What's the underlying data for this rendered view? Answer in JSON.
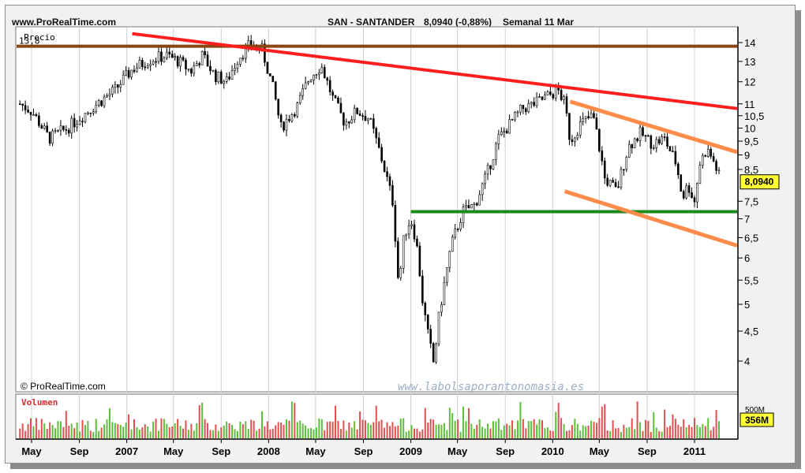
{
  "header": {
    "site": "www.ProRealTime.com",
    "instrument": "SAN - SANTANDER",
    "quote": "8,0940 (-0,88%)",
    "period": "Semanal  11 Mar"
  },
  "watermark": "www.labolsaporantonomasia.es",
  "copyright": "© ProRealTime.com",
  "chart_data": {
    "type": "candlestick",
    "price_panel": {
      "title": "Precio",
      "y_axis_ticks": [
        {
          "value": 14,
          "label": "14"
        },
        {
          "value": 13,
          "label": "13"
        },
        {
          "value": 12,
          "label": "12"
        },
        {
          "value": 11,
          "label": "11"
        },
        {
          "value": 10.5,
          "label": "10,5"
        },
        {
          "value": 10,
          "label": "10"
        },
        {
          "value": 9.5,
          "label": "9,5"
        },
        {
          "value": 9,
          "label": "9"
        },
        {
          "value": 8.5,
          "label": "8,5"
        },
        {
          "value": 7.5,
          "label": "7,5"
        },
        {
          "value": 7,
          "label": "7"
        },
        {
          "value": 6.5,
          "label": "6,5"
        },
        {
          "value": 6,
          "label": "6"
        },
        {
          "value": 5.5,
          "label": "5,5"
        },
        {
          "value": 5,
          "label": "5"
        },
        {
          "value": 4.5,
          "label": "4,5"
        },
        {
          "value": 4,
          "label": "4"
        }
      ],
      "last_price": {
        "value": 8.094,
        "label": "8,0940"
      },
      "resistance": {
        "value": 13.8,
        "label": "13,8",
        "color": "#8b4513"
      },
      "trendlines": [
        {
          "name": "down-trend",
          "color": "#ff1e1e",
          "from": {
            "date": "2007-01-15",
            "value": 14.5
          },
          "to": {
            "date": "2011-05-15",
            "value": 10.8
          }
        },
        {
          "name": "support",
          "color": "#1a8a1a",
          "from": {
            "date": "2009-01-01",
            "value": 7.2
          },
          "to": {
            "date": "2011-05-15",
            "value": 7.2
          }
        },
        {
          "name": "channel-top",
          "color": "#ff8c4a",
          "from": {
            "date": "2010-02-15",
            "value": 11.1
          },
          "to": {
            "date": "2011-05-15",
            "value": 9.1
          }
        },
        {
          "name": "channel-bottom",
          "color": "#ff8c4a",
          "from": {
            "date": "2010-02-01",
            "value": 7.8
          },
          "to": {
            "date": "2011-05-15",
            "value": 6.3
          }
        }
      ],
      "price_path": [
        [
          "2006-04-01",
          11.0
        ],
        [
          "2006-05-01",
          10.7
        ],
        [
          "2006-06-15",
          9.6
        ],
        [
          "2006-08-01",
          10.0
        ],
        [
          "2006-10-01",
          10.8
        ],
        [
          "2006-12-01",
          11.6
        ],
        [
          "2007-01-15",
          12.6
        ],
        [
          "2007-03-01",
          13.1
        ],
        [
          "2007-04-15",
          13.3
        ],
        [
          "2007-05-15",
          13.0
        ],
        [
          "2007-06-15",
          12.5
        ],
        [
          "2007-07-15",
          13.3
        ],
        [
          "2007-08-15",
          12.3
        ],
        [
          "2007-09-15",
          12.0
        ],
        [
          "2007-10-15",
          13.2
        ],
        [
          "2007-11-15",
          13.9
        ],
        [
          "2007-12-15",
          13.6
        ],
        [
          "2008-01-15",
          11.5
        ],
        [
          "2008-02-01",
          10.0
        ],
        [
          "2008-03-15",
          10.9
        ],
        [
          "2008-04-15",
          12.2
        ],
        [
          "2008-05-15",
          12.8
        ],
        [
          "2008-06-15",
          11.2
        ],
        [
          "2008-07-15",
          10.2
        ],
        [
          "2008-08-15",
          10.7
        ],
        [
          "2008-09-15",
          10.4
        ],
        [
          "2008-10-15",
          9.0
        ],
        [
          "2008-11-15",
          7.5
        ],
        [
          "2008-12-01",
          5.3
        ],
        [
          "2008-12-15",
          6.6
        ],
        [
          "2009-01-01",
          7.0
        ],
        [
          "2009-01-15",
          6.4
        ],
        [
          "2009-02-01",
          5.0
        ],
        [
          "2009-02-15",
          4.4
        ],
        [
          "2009-03-01",
          3.95
        ],
        [
          "2009-03-15",
          4.8
        ],
        [
          "2009-04-01",
          5.6
        ],
        [
          "2009-04-15",
          6.3
        ],
        [
          "2009-05-15",
          7.2
        ],
        [
          "2009-06-15",
          7.4
        ],
        [
          "2009-07-15",
          8.3
        ],
        [
          "2009-08-15",
          9.6
        ],
        [
          "2009-09-15",
          10.2
        ],
        [
          "2009-10-15",
          10.8
        ],
        [
          "2009-11-15",
          11.0
        ],
        [
          "2009-12-15",
          11.3
        ],
        [
          "2010-01-15",
          11.6
        ],
        [
          "2010-02-01",
          11.0
        ],
        [
          "2010-02-15",
          9.5
        ],
        [
          "2010-03-15",
          10.2
        ],
        [
          "2010-04-15",
          10.5
        ],
        [
          "2010-05-15",
          8.2
        ],
        [
          "2010-06-15",
          7.8
        ],
        [
          "2010-07-15",
          9.3
        ],
        [
          "2010-08-15",
          9.8
        ],
        [
          "2010-09-15",
          9.4
        ],
        [
          "2010-10-15",
          9.6
        ],
        [
          "2010-11-15",
          8.7
        ],
        [
          "2010-12-01",
          7.6
        ],
        [
          "2010-12-15",
          8.0
        ],
        [
          "2011-01-01",
          7.5
        ],
        [
          "2011-01-15",
          8.7
        ],
        [
          "2011-02-01",
          9.2
        ],
        [
          "2011-02-15",
          8.9
        ],
        [
          "2011-03-11",
          8.094
        ]
      ]
    },
    "volume_panel": {
      "title": "Volumen",
      "y_axis_ticks": [
        {
          "value": 500,
          "label": "500M"
        }
      ],
      "last_volume": {
        "value": 356,
        "label": "356M"
      }
    },
    "x_axis_ticks": [
      {
        "date": "2006-05-01",
        "label": "May"
      },
      {
        "date": "2006-09-01",
        "label": "Sep"
      },
      {
        "date": "2007-01-01",
        "label": "2007"
      },
      {
        "date": "2007-05-01",
        "label": "May"
      },
      {
        "date": "2007-09-01",
        "label": "Sep"
      },
      {
        "date": "2008-01-01",
        "label": "2008"
      },
      {
        "date": "2008-05-01",
        "label": "May"
      },
      {
        "date": "2008-09-01",
        "label": "Sep"
      },
      {
        "date": "2009-01-01",
        "label": "2009"
      },
      {
        "date": "2009-05-01",
        "label": "May"
      },
      {
        "date": "2009-09-01",
        "label": "Sep"
      },
      {
        "date": "2010-01-01",
        "label": "2010"
      },
      {
        "date": "2010-05-01",
        "label": "May"
      },
      {
        "date": "2010-09-01",
        "label": "Sep"
      },
      {
        "date": "2011-01-01",
        "label": "2011"
      }
    ],
    "colors": {
      "up": "#5cbf3a",
      "down": "#e05050",
      "candle": "#000000"
    }
  }
}
